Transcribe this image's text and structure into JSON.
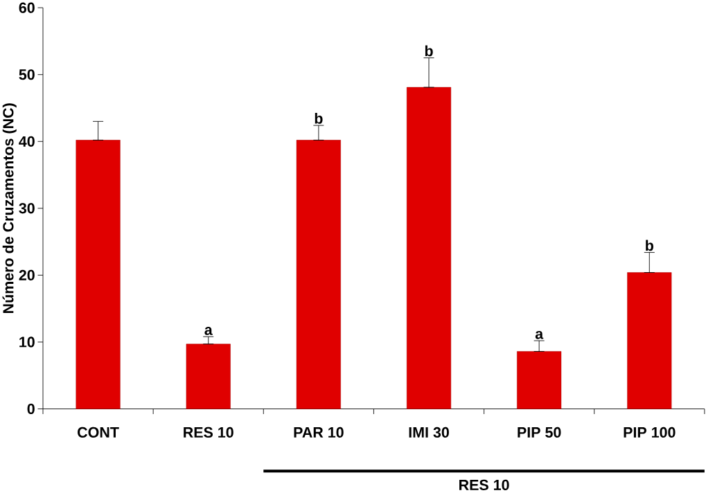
{
  "chart_data": {
    "type": "bar",
    "ylabel": "Número de Cruzamentos (NC)",
    "categories": [
      "CONT",
      "RES 10",
      "PAR 10",
      "IMI 30",
      "PIP 50",
      "PIP 100"
    ],
    "values": [
      40.2,
      9.7,
      40.2,
      48.1,
      8.6,
      20.4
    ],
    "errors": [
      [
        40.2,
        43.0
      ],
      [
        9.7,
        10.8
      ],
      [
        40.2,
        42.4
      ],
      [
        48.1,
        52.5
      ],
      [
        8.6,
        10.2
      ],
      [
        20.4,
        23.4
      ]
    ],
    "color": "#e00000",
    "ylim": [
      0,
      60
    ],
    "yticks": [
      0,
      10,
      20,
      30,
      40,
      50,
      60
    ],
    "grid": false,
    "annotations": [
      {
        "text": "a",
        "x": "RES 10",
        "y": 10.8
      },
      {
        "text": "b",
        "x": "PAR 10",
        "y": 42.4
      },
      {
        "text": "b",
        "x": "IMI 30",
        "y": 52.5
      },
      {
        "text": "a",
        "x": "PIP 50",
        "y": 10.2
      },
      {
        "text": "b",
        "x": "PIP 100",
        "y": 23.4
      },
      "RES 10"
    ]
  }
}
